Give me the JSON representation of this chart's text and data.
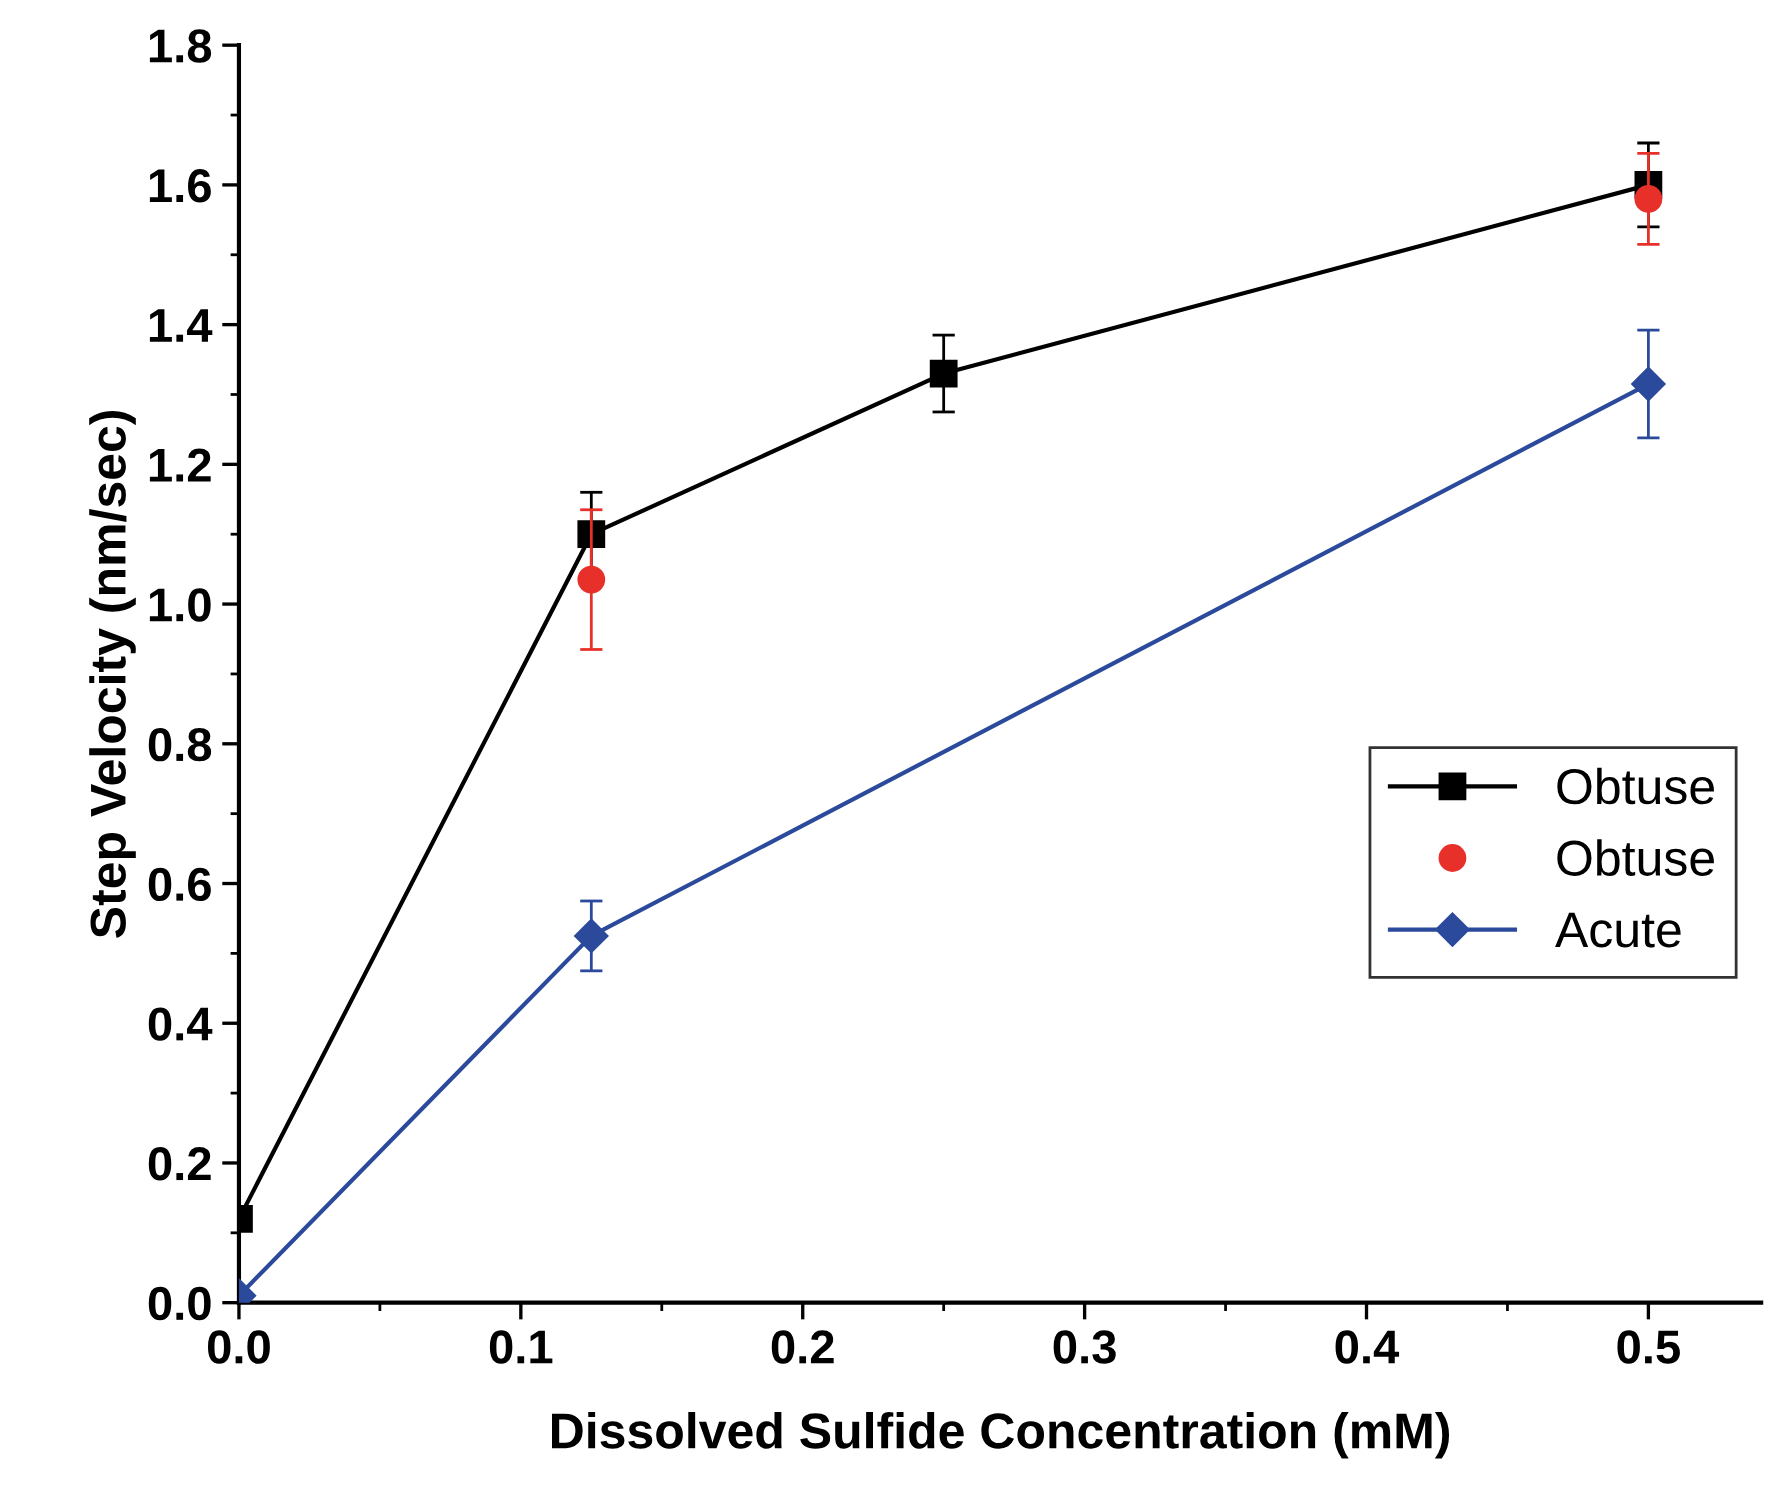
{
  "chart_data": {
    "type": "line",
    "xlabel": "Dissolved Sulfide Concentration (mM)",
    "ylabel": "Step Velocity (nm/sec)",
    "xlim": [
      0,
      0.54
    ],
    "xticks": [
      {
        "value": 0,
        "label": "0.0"
      },
      0.1,
      0.2,
      0.3,
      0.4,
      0.5
    ],
    "ylim": [
      0,
      1.8
    ],
    "yticks": [
      {
        "value": 0,
        "label": "0.0"
      },
      0.2,
      0.4,
      0.6,
      0.8,
      {
        "value": 1,
        "label": "1.0"
      },
      1.2,
      1.4,
      1.6,
      1.8
    ],
    "grid": false,
    "legend": "right",
    "series": [
      {
        "name": "Obtuse",
        "marker": "square",
        "color": "#000000",
        "x": [
          0,
          0.125,
          0.25,
          0.5
        ],
        "values": [
          0.12,
          1.1,
          1.33,
          1.6
        ],
        "errors": [
          null,
          0.06,
          0.055,
          0.06
        ]
      },
      {
        "name": "Obtuse",
        "type": "scatter",
        "marker": "circle",
        "color": "#e8302a",
        "x": [
          0.125,
          0.5
        ],
        "values": [
          1.035,
          1.58
        ],
        "errors": [
          0.1,
          0.065
        ]
      },
      {
        "name": "Acute",
        "marker": "diamond",
        "color": "#2b4a9c",
        "x": [
          0,
          0.125,
          0.5
        ],
        "values": [
          0.01,
          0.525,
          1.315
        ],
        "errors": [
          null,
          0.05,
          0.077
        ]
      }
    ]
  }
}
